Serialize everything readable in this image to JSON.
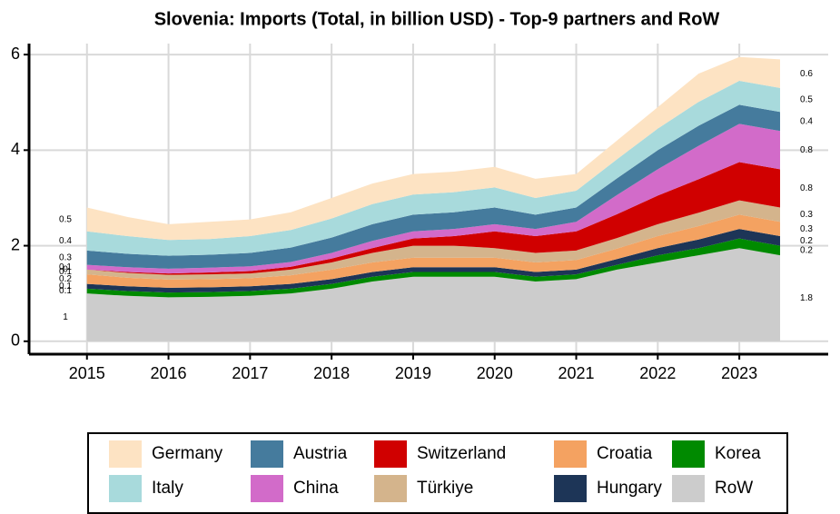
{
  "chart_data": {
    "type": "stacked_area",
    "title": "Slovenia: Imports (Total, in billion USD) - Top-9 partners and RoW",
    "x": [
      2015,
      2015.5,
      2016,
      2016.5,
      2017,
      2017.5,
      2018,
      2018.5,
      2019,
      2019.5,
      2020,
      2020.5,
      2021,
      2021.5,
      2022,
      2022.5,
      2023,
      2023.5
    ],
    "series": [
      {
        "name": "RoW",
        "color": "#cccccc",
        "values": [
          1,
          0.95,
          0.92,
          0.93,
          0.95,
          1,
          1.1,
          1.25,
          1.35,
          1.35,
          1.35,
          1.25,
          1.3,
          1.5,
          1.65,
          1.8,
          1.95,
          1.8
        ]
      },
      {
        "name": "Korea",
        "color": "#008a00",
        "values": [
          0.1,
          0.1,
          0.1,
          0.1,
          0.1,
          0.1,
          0.1,
          0.1,
          0.1,
          0.1,
          0.1,
          0.1,
          0.1,
          0.1,
          0.15,
          0.15,
          0.2,
          0.2
        ]
      },
      {
        "name": "Hungary",
        "color": "#1d3557",
        "values": [
          0.1,
          0.1,
          0.1,
          0.1,
          0.1,
          0.1,
          0.1,
          0.1,
          0.1,
          0.1,
          0.1,
          0.1,
          0.1,
          0.12,
          0.15,
          0.18,
          0.2,
          0.2
        ]
      },
      {
        "name": "Croatia",
        "color": "#f4a261",
        "values": [
          0.2,
          0.18,
          0.17,
          0.17,
          0.17,
          0.18,
          0.2,
          0.2,
          0.2,
          0.2,
          0.2,
          0.2,
          0.2,
          0.22,
          0.25,
          0.28,
          0.3,
          0.3
        ]
      },
      {
        "name": "Türkiye",
        "color": "#d4b48c",
        "values": [
          0.1,
          0.1,
          0.1,
          0.1,
          0.1,
          0.12,
          0.15,
          0.2,
          0.25,
          0.25,
          0.2,
          0.2,
          0.2,
          0.22,
          0.25,
          0.28,
          0.3,
          0.3
        ]
      },
      {
        "name": "Switzerland",
        "color": "#d00000",
        "values": [
          0,
          0.02,
          0.03,
          0.04,
          0.05,
          0.06,
          0.08,
          0.1,
          0.15,
          0.2,
          0.35,
          0.35,
          0.4,
          0.5,
          0.6,
          0.7,
          0.8,
          0.8
        ]
      },
      {
        "name": "China",
        "color": "#d26bc9",
        "values": [
          0.1,
          0.1,
          0.1,
          0.1,
          0.1,
          0.1,
          0.12,
          0.15,
          0.15,
          0.15,
          0.15,
          0.15,
          0.2,
          0.4,
          0.55,
          0.7,
          0.8,
          0.8
        ]
      },
      {
        "name": "Austria",
        "color": "#457b9d",
        "values": [
          0.3,
          0.28,
          0.27,
          0.27,
          0.28,
          0.3,
          0.32,
          0.35,
          0.35,
          0.35,
          0.35,
          0.3,
          0.3,
          0.35,
          0.4,
          0.42,
          0.4,
          0.4
        ]
      },
      {
        "name": "Italy",
        "color": "#a8dadc",
        "values": [
          0.4,
          0.37,
          0.33,
          0.33,
          0.35,
          0.37,
          0.4,
          0.42,
          0.42,
          0.42,
          0.42,
          0.35,
          0.35,
          0.4,
          0.45,
          0.5,
          0.5,
          0.5
        ]
      },
      {
        "name": "Germany",
        "color": "#fde3c3",
        "values": [
          0.5,
          0.4,
          0.33,
          0.36,
          0.35,
          0.37,
          0.43,
          0.43,
          0.43,
          0.43,
          0.43,
          0.4,
          0.35,
          0.39,
          0.45,
          0.59,
          0.5,
          0.6
        ]
      }
    ],
    "legend_order": [
      "Germany",
      "Italy",
      "Austria",
      "China",
      "Switzerland",
      "Türkiye",
      "Croatia",
      "Hungary",
      "Korea",
      "RoW"
    ],
    "xlim": [
      2014.29,
      2024.09
    ],
    "xticks": [
      2015,
      2016,
      2017,
      2018,
      2019,
      2020,
      2021,
      2022,
      2023
    ],
    "ylim": [
      -0.27,
      6.23
    ],
    "yticks": [
      0,
      2,
      4,
      6
    ],
    "grid": true,
    "legend": "bottom"
  }
}
